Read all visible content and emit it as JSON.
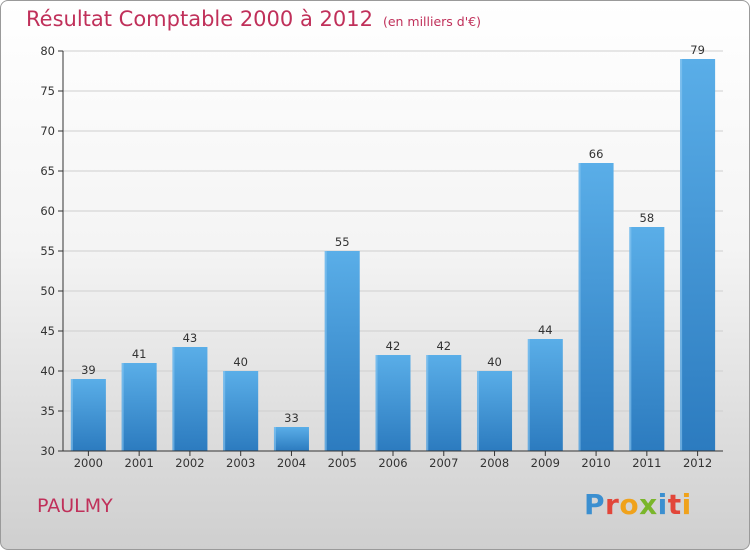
{
  "chart_data": {
    "type": "bar",
    "title": "Résultat Comptable 2000 à 2012",
    "subtitle": "(en milliers d'€)",
    "categories": [
      "2000",
      "2001",
      "2002",
      "2003",
      "2004",
      "2005",
      "2006",
      "2007",
      "2008",
      "2009",
      "2010",
      "2011",
      "2012"
    ],
    "values": [
      39,
      41,
      43,
      40,
      33,
      55,
      42,
      42,
      40,
      44,
      66,
      58,
      79
    ],
    "ylim": [
      30,
      80
    ],
    "yticks": [
      30,
      35,
      40,
      45,
      50,
      55,
      60,
      65,
      70,
      75,
      80
    ],
    "xlabel": "",
    "ylabel": "",
    "grid": true,
    "bar_color_top": "#5aaee8",
    "bar_color_bottom": "#2c7bbf",
    "axis_color": "#333333",
    "grid_color": "#cfcfcf"
  },
  "footer": {
    "place_name": "PAULMY",
    "logo_text": "Proxiti",
    "logo_colors": [
      "#3b8fd0",
      "#e2463a",
      "#f0a21b",
      "#7ab62b",
      "#3b8fd0",
      "#e2463a",
      "#f0a21b"
    ]
  },
  "colors": {
    "title": "#c0305a"
  }
}
